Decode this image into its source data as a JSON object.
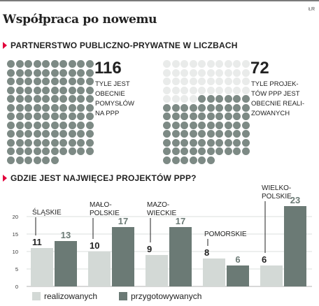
{
  "header": {
    "title": "Współpraca po nowemu",
    "credit": "ŁR"
  },
  "section1": {
    "heading": "Partnerstwo publiczno-prywatne w liczbach",
    "left_stat": {
      "value": "116",
      "caption": "TYLE JEST\nOBECNIE\nPOMYSŁÓW\nNA PPP",
      "dots_total": 116,
      "dots_filled": 116
    },
    "right_stat": {
      "value": "72",
      "caption": "TYLE PROJEK-\nTÓW PPP JEST\nOBECNIE REALI-\nZOWANYCH",
      "dots_total": 116,
      "dots_filled": 72
    },
    "colors": {
      "filled": "#7d8a85",
      "empty": "#e9ebea"
    }
  },
  "section2": {
    "heading": "Gdzie jest najwięcej projektów PPP?"
  },
  "chart_data": {
    "type": "bar",
    "categories": [
      "ŚLĄSKIE",
      "MAŁO-\nPOLSKIE",
      "MAZO-\nWIECKIE",
      "POMORSKIE",
      "WIELKO-\nPOLSKIE"
    ],
    "series": [
      {
        "name": "realizowanych",
        "values": [
          11,
          10,
          9,
          8,
          6
        ],
        "color": "#d3d9d6"
      },
      {
        "name": "przygotowywanych",
        "values": [
          13,
          17,
          17,
          6,
          23
        ],
        "color": "#6b7a75"
      }
    ],
    "ylim": [
      0,
      23
    ],
    "yticks": [
      0,
      5,
      10,
      15,
      20,
      25
    ],
    "grid": true,
    "legend": "bottom"
  }
}
